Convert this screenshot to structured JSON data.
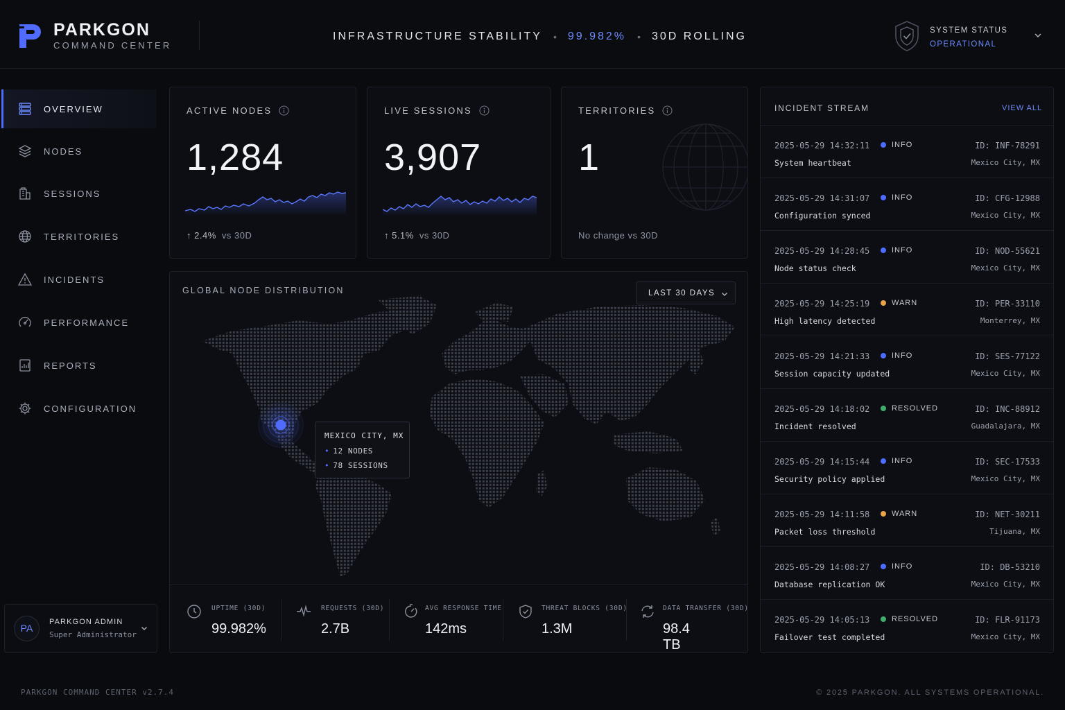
{
  "brand": {
    "name": "PARKGON",
    "subtitle": "COMMAND CENTER"
  },
  "header": {
    "stability_label": "INFRASTRUCTURE STABILITY",
    "stability_value": "99.982%",
    "stability_window": "30D ROLLING",
    "system_status_label": "SYSTEM STATUS",
    "system_status_value": "OPERATIONAL"
  },
  "sidebar": {
    "items": [
      {
        "label": "OVERVIEW",
        "icon": "server-stack-icon",
        "active": true
      },
      {
        "label": "NODES",
        "icon": "layers-icon"
      },
      {
        "label": "SESSIONS",
        "icon": "building-icon"
      },
      {
        "label": "TERRITORIES",
        "icon": "globe-icon"
      },
      {
        "label": "INCIDENTS",
        "icon": "warning-icon"
      },
      {
        "label": "PERFORMANCE",
        "icon": "gauge-icon"
      },
      {
        "label": "REPORTS",
        "icon": "report-icon"
      },
      {
        "label": "CONFIGURATION",
        "icon": "gear-icon"
      }
    ],
    "user": {
      "initials": "PA",
      "name": "PARKGON ADMIN",
      "role": "Super Administrator"
    }
  },
  "kpis": {
    "active_nodes": {
      "title": "ACTIVE NODES",
      "value": "1,284",
      "delta": "2.4%",
      "delta_suffix": "vs 30D"
    },
    "live_sessions": {
      "title": "LIVE SESSIONS",
      "value": "3,907",
      "delta": "5.1%",
      "delta_suffix": "vs 30D"
    },
    "territories": {
      "title": "TERRITORIES",
      "value": "1",
      "delta_text": "No change vs 30D"
    }
  },
  "map": {
    "title": "GLOBAL NODE DISTRIBUTION",
    "range": "LAST 30 DAYS",
    "tooltip": {
      "city": "MEXICO CITY, MX",
      "nodes": "12 NODES",
      "sessions": "78 SESSIONS"
    },
    "stats": [
      {
        "label": "UPTIME (30D)",
        "value": "99.982%",
        "icon": "clock-icon"
      },
      {
        "label": "REQUESTS (30D)",
        "value": "2.7B",
        "icon": "pulse-icon"
      },
      {
        "label": "AVG RESPONSE TIME",
        "value": "142ms",
        "icon": "timer-icon"
      },
      {
        "label": "THREAT BLOCKS (30D)",
        "value": "1.3M",
        "icon": "shield-icon"
      },
      {
        "label": "DATA TRANSFER (30D)",
        "value": "98.4 TB",
        "icon": "refresh-icon"
      }
    ]
  },
  "incidents": {
    "title": "INCIDENT STREAM",
    "view_all": "VIEW ALL",
    "level_colors": {
      "INFO": "#4f6cff",
      "WARN": "#e8a54a",
      "RESOLVED": "#3fae6b"
    },
    "rows": [
      {
        "time": "2025-05-29 14:32:11",
        "level": "INFO",
        "id": "ID: INF-78291",
        "message": "System heartbeat",
        "location": "Mexico City, MX"
      },
      {
        "time": "2025-05-29 14:31:07",
        "level": "INFO",
        "id": "ID: CFG-12988",
        "message": "Configuration synced",
        "location": "Mexico City, MX"
      },
      {
        "time": "2025-05-29 14:28:45",
        "level": "INFO",
        "id": "ID: NOD-55621",
        "message": "Node status check",
        "location": "Mexico City, MX"
      },
      {
        "time": "2025-05-29 14:25:19",
        "level": "WARN",
        "id": "ID: PER-33110",
        "message": "High latency detected",
        "location": "Monterrey, MX"
      },
      {
        "time": "2025-05-29 14:21:33",
        "level": "INFO",
        "id": "ID: SES-77122",
        "message": "Session capacity updated",
        "location": "Mexico City, MX"
      },
      {
        "time": "2025-05-29 14:18:02",
        "level": "RESOLVED",
        "id": "ID: INC-88912",
        "message": "Incident resolved",
        "location": "Guadalajara, MX"
      },
      {
        "time": "2025-05-29 14:15:44",
        "level": "INFO",
        "id": "ID: SEC-17533",
        "message": "Security policy applied",
        "location": "Mexico City, MX"
      },
      {
        "time": "2025-05-29 14:11:58",
        "level": "WARN",
        "id": "ID: NET-30211",
        "message": "Packet loss threshold",
        "location": "Tijuana, MX"
      },
      {
        "time": "2025-05-29 14:08:27",
        "level": "INFO",
        "id": "ID: DB-53210",
        "message": "Database replication OK",
        "location": "Mexico City, MX"
      },
      {
        "time": "2025-05-29 14:05:13",
        "level": "RESOLVED",
        "id": "ID: FLR-91173",
        "message": "Failover test completed",
        "location": "Mexico City, MX"
      }
    ]
  },
  "footer": {
    "version": "PARKGON COMMAND CENTER v2.7.4",
    "copyright": "© 2025 PARKGON. ALL SYSTEMS OPERATIONAL."
  },
  "colors": {
    "accent": "#4f6cff",
    "accent_text": "#6d8cff",
    "background": "#0a0b0f"
  }
}
